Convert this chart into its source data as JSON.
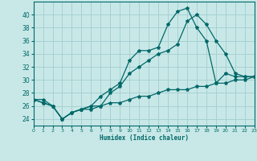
{
  "title": "",
  "xlabel": "Humidex (Indice chaleur)",
  "bg_color": "#c8e8e8",
  "grid_color": "#a8d0d0",
  "line_color": "#006868",
  "x_min": 0,
  "x_max": 23,
  "y_min": 23,
  "y_max": 42,
  "yticks": [
    24,
    26,
    28,
    30,
    32,
    34,
    36,
    38,
    40
  ],
  "xticks": [
    0,
    1,
    2,
    3,
    4,
    5,
    6,
    7,
    8,
    9,
    10,
    11,
    12,
    13,
    14,
    15,
    16,
    17,
    18,
    19,
    20,
    21,
    22,
    23
  ],
  "series": [
    {
      "x": [
        0,
        1,
        2,
        3,
        4,
        5,
        6,
        7,
        8,
        9,
        10,
        11,
        12,
        13,
        14,
        15,
        16,
        17,
        18,
        19,
        20,
        21,
        22,
        23
      ],
      "y": [
        27,
        26.5,
        26,
        24,
        25,
        25.5,
        26,
        27.5,
        28.5,
        29.5,
        33,
        34.5,
        34.5,
        35,
        38.5,
        40.5,
        41,
        38,
        36,
        29.5,
        31,
        30.5,
        30.5,
        30.5
      ]
    },
    {
      "x": [
        0,
        1,
        2,
        3,
        4,
        5,
        6,
        7,
        8,
        9,
        10,
        11,
        12,
        13,
        14,
        15,
        16,
        17,
        18,
        19,
        20,
        21,
        22,
        23
      ],
      "y": [
        27,
        26.5,
        26,
        24,
        25,
        25.5,
        26,
        26,
        28,
        29,
        31,
        32,
        33,
        34,
        34.5,
        35.5,
        39,
        40,
        38.5,
        36,
        34,
        31,
        30.5,
        30.5
      ]
    },
    {
      "x": [
        0,
        1,
        2,
        3,
        4,
        5,
        6,
        7,
        8,
        9,
        10,
        11,
        12,
        13,
        14,
        15,
        16,
        17,
        18,
        19,
        20,
        21,
        22,
        23
      ],
      "y": [
        27,
        27,
        26,
        24,
        25,
        25.5,
        25.5,
        26,
        26.5,
        26.5,
        27,
        27.5,
        27.5,
        28,
        28.5,
        28.5,
        28.5,
        29,
        29,
        29.5,
        29.5,
        30,
        30,
        30.5
      ]
    }
  ]
}
